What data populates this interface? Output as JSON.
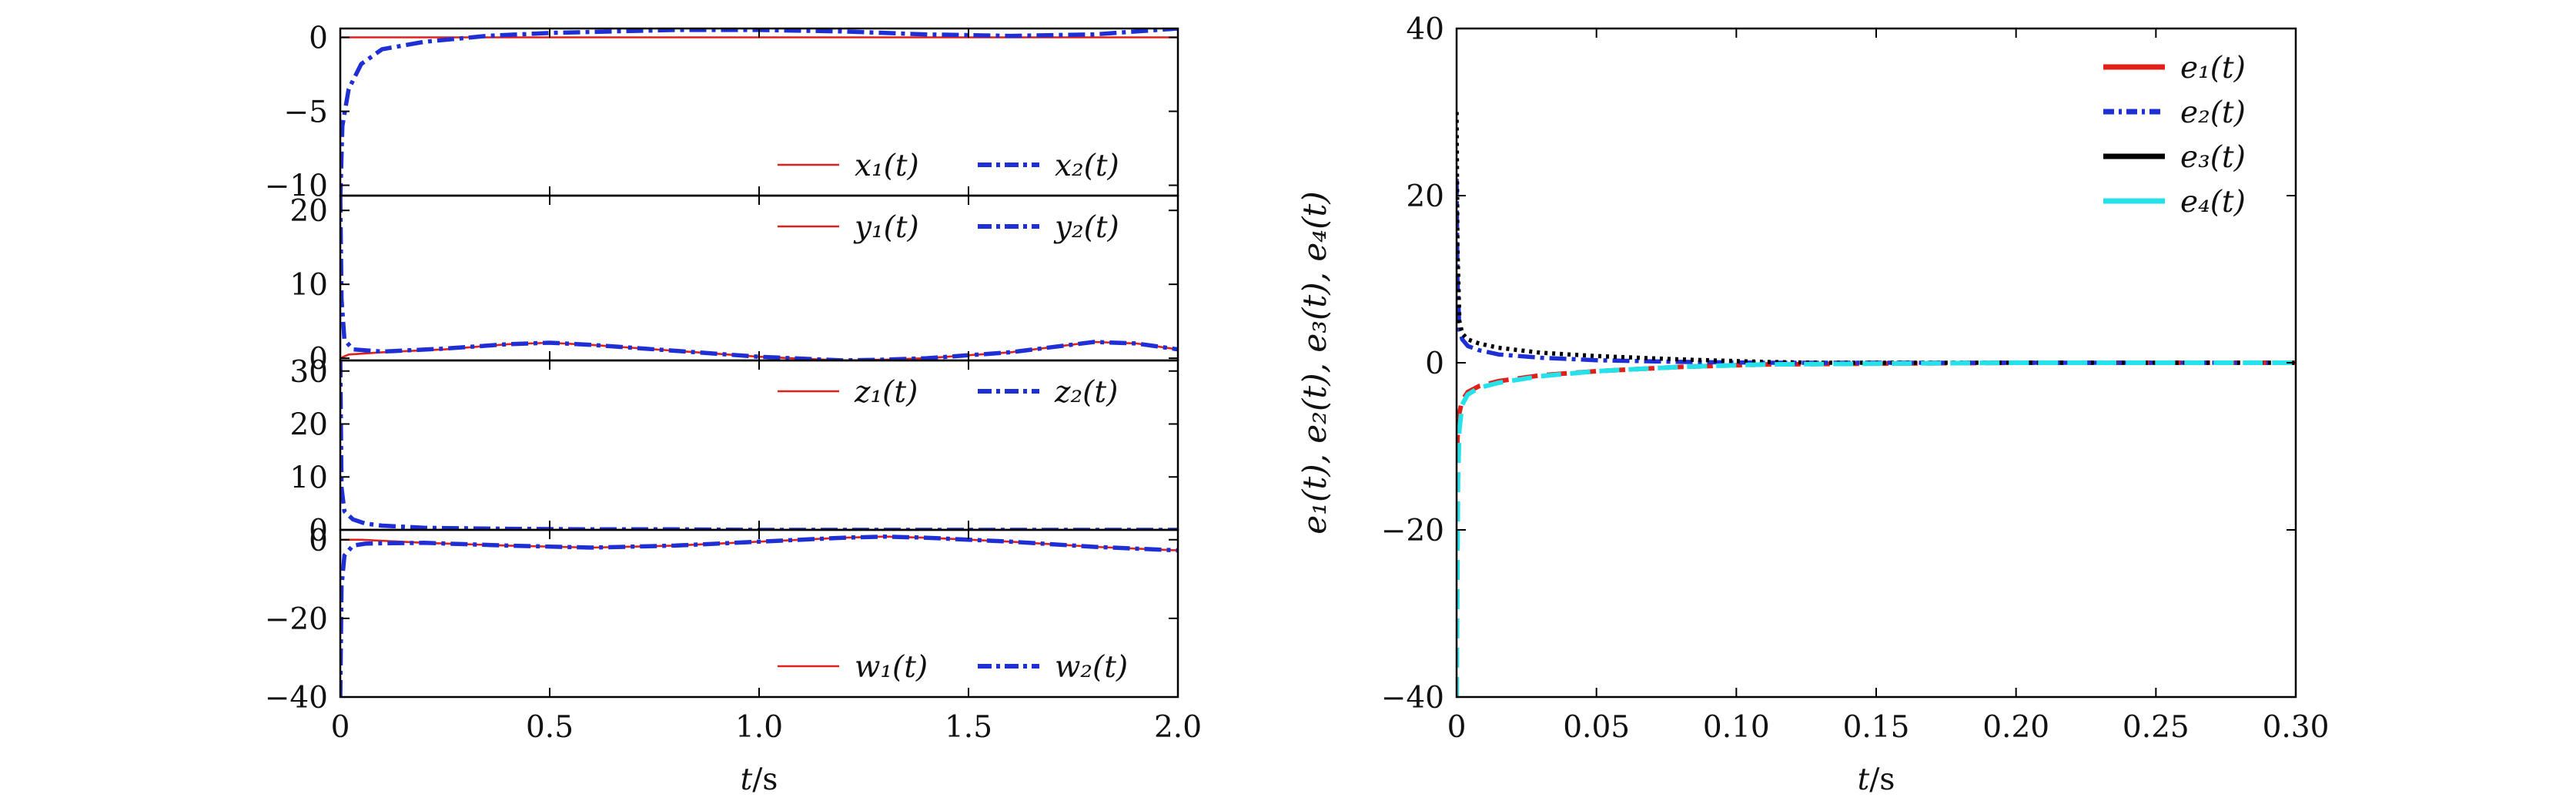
{
  "chart_data": [
    {
      "type": "line",
      "panel": "left-top",
      "xlim": [
        0,
        2.0
      ],
      "ylim": [
        -10,
        0.8
      ],
      "yticks": [
        0,
        -5,
        -10
      ],
      "ytick_labels": [
        "0",
        "−5",
        "−10"
      ],
      "legend_placement": "bottom-right",
      "series": [
        {
          "name": "x₁(t)",
          "color": "#e0201b",
          "style": "solid",
          "x": [
            0,
            0.005,
            0.02,
            0.05,
            0.1,
            0.2,
            0.35,
            0.5,
            0.65,
            0.8,
            1.0,
            1.2,
            1.4,
            1.6,
            1.8,
            2.0
          ],
          "y": [
            0,
            0,
            0,
            0,
            0,
            0,
            0,
            0,
            0,
            0,
            0,
            0,
            0,
            0,
            0,
            0
          ]
        },
        {
          "name": "x₂(t)",
          "color": "#1f2fd6",
          "style": "dashdot",
          "x": [
            0,
            0.005,
            0.02,
            0.05,
            0.1,
            0.2,
            0.35,
            0.5,
            0.65,
            0.8,
            1.0,
            1.2,
            1.4,
            1.6,
            1.8,
            2.0
          ],
          "y": [
            -11,
            -6,
            -3.5,
            -1.8,
            -0.8,
            -0.3,
            0.1,
            0.3,
            0.4,
            0.5,
            0.5,
            0.4,
            0.2,
            0.1,
            0.2,
            0.6
          ]
        }
      ]
    },
    {
      "type": "line",
      "panel": "left-middle-1",
      "xlim": [
        0,
        2.0
      ],
      "ylim": [
        -1,
        22
      ],
      "yticks": [
        20,
        10,
        0
      ],
      "ytick_labels": [
        "20",
        "10",
        "0"
      ],
      "legend_placement": "top-right",
      "series": [
        {
          "name": "y₁(t)",
          "color": "#e0201b",
          "style": "solid",
          "x": [
            0,
            0.02,
            0.1,
            0.25,
            0.4,
            0.5,
            0.6,
            0.8,
            1.0,
            1.2,
            1.3,
            1.4,
            1.6,
            1.8,
            1.9,
            2.0
          ],
          "y": [
            0,
            0.5,
            0.8,
            1.2,
            1.9,
            2.1,
            1.8,
            1.0,
            0.2,
            -0.3,
            -0.2,
            0.0,
            0.8,
            2.2,
            2.0,
            1.2
          ]
        },
        {
          "name": "y₂(t)",
          "color": "#1f2fd6",
          "style": "dashdot",
          "x": [
            0,
            0.003,
            0.01,
            0.03,
            0.1,
            0.25,
            0.4,
            0.5,
            0.6,
            0.8,
            1.0,
            1.2,
            1.3,
            1.4,
            1.6,
            1.8,
            1.9,
            2.0
          ],
          "y": [
            22,
            8,
            2.5,
            1.2,
            0.9,
            1.3,
            1.9,
            2.1,
            1.8,
            1.0,
            0.2,
            -0.3,
            -0.2,
            0.0,
            0.8,
            2.2,
            2.0,
            1.2
          ]
        }
      ]
    },
    {
      "type": "line",
      "panel": "left-middle-2",
      "xlim": [
        0,
        2.0
      ],
      "ylim": [
        -1,
        32
      ],
      "yticks": [
        30,
        20,
        10,
        0
      ],
      "ytick_labels": [
        "30",
        "20",
        "10",
        "0"
      ],
      "legend_placement": "top-right",
      "series": [
        {
          "name": "z₁(t)",
          "color": "#e0201b",
          "style": "solid",
          "x": [
            0,
            0.1,
            0.5,
            1.0,
            1.5,
            2.0
          ],
          "y": [
            0,
            0,
            0,
            0,
            0,
            0
          ]
        },
        {
          "name": "z₂(t)",
          "color": "#1f2fd6",
          "style": "dashdot",
          "x": [
            0,
            0.003,
            0.01,
            0.03,
            0.06,
            0.1,
            0.2,
            0.4,
            0.6,
            0.8,
            1.0,
            1.2,
            1.4,
            1.6,
            1.8,
            2.0
          ],
          "y": [
            32,
            8,
            3.5,
            2.0,
            1.2,
            0.8,
            0.4,
            0.2,
            0.1,
            0.1,
            0.0,
            0.0,
            0.0,
            0.0,
            0.0,
            0.0
          ]
        }
      ]
    },
    {
      "type": "line",
      "panel": "left-bottom",
      "xlim": [
        0,
        2.0
      ],
      "ylim": [
        -40,
        2
      ],
      "yticks": [
        0,
        -20,
        -40
      ],
      "ytick_labels": [
        "0",
        "−20",
        "−40"
      ],
      "xticks": [
        0,
        0.5,
        1.0,
        1.5,
        2.0
      ],
      "xtick_labels": [
        "0",
        "0.5",
        "1.0",
        "1.5",
        "2.0"
      ],
      "xlabel": "t/s",
      "legend_placement": "bottom-right",
      "series": [
        {
          "name": "w₁(t)",
          "color": "#e0201b",
          "style": "solid",
          "x": [
            0,
            0.05,
            0.2,
            0.4,
            0.6,
            0.8,
            1.0,
            1.2,
            1.3,
            1.4,
            1.6,
            1.8,
            2.0
          ],
          "y": [
            0,
            0,
            -0.8,
            -1.5,
            -2.0,
            -1.5,
            -0.5,
            0.5,
            0.8,
            0.5,
            -0.5,
            -1.8,
            -2.7
          ]
        },
        {
          "name": "w₂(t)",
          "color": "#1f2fd6",
          "style": "dashdot",
          "x": [
            0,
            0.003,
            0.01,
            0.03,
            0.06,
            0.1,
            0.2,
            0.4,
            0.6,
            0.8,
            1.0,
            1.2,
            1.3,
            1.4,
            1.6,
            1.8,
            2.0
          ],
          "y": [
            -40,
            -12,
            -4,
            -1.5,
            -1.0,
            -0.9,
            -0.8,
            -1.5,
            -2.0,
            -1.5,
            -0.5,
            0.5,
            0.8,
            0.5,
            -0.5,
            -1.8,
            -2.7
          ]
        }
      ]
    },
    {
      "type": "line",
      "panel": "right",
      "xlim": [
        0,
        0.3
      ],
      "ylim": [
        -40,
        40
      ],
      "yticks": [
        40,
        20,
        0,
        -20,
        -40
      ],
      "ytick_labels": [
        "40",
        "20",
        "0",
        "−20",
        "−40"
      ],
      "xticks": [
        0,
        0.05,
        0.1,
        0.15,
        0.2,
        0.25,
        0.3
      ],
      "xtick_labels": [
        "0",
        "0.05",
        "0.10",
        "0.15",
        "0.20",
        "0.25",
        "0.30"
      ],
      "xlabel": "t/s",
      "ylabel": "e₁(t), e₂(t), e₃(t), e₄(t)",
      "legend_placement": "top-right",
      "series": [
        {
          "name": "e₁(t)",
          "color": "#e0201b",
          "style": "dashed",
          "x": [
            0,
            0.0005,
            0.001,
            0.002,
            0.004,
            0.008,
            0.015,
            0.03,
            0.05,
            0.08,
            0.11,
            0.15,
            0.2,
            0.3
          ],
          "y": [
            -11,
            -8,
            -6,
            -4.5,
            -3.5,
            -2.8,
            -2.2,
            -1.5,
            -1.0,
            -0.5,
            -0.2,
            -0.1,
            0,
            0
          ]
        },
        {
          "name": "e₂(t)",
          "color": "#1f2fd6",
          "style": "dashdot",
          "x": [
            0,
            0.0003,
            0.001,
            0.002,
            0.004,
            0.008,
            0.015,
            0.03,
            0.05,
            0.08,
            0.11,
            0.15,
            0.2,
            0.3
          ],
          "y": [
            22,
            10,
            4,
            2.8,
            2.0,
            1.5,
            1.0,
            0.6,
            0.3,
            0.1,
            0.0,
            0,
            0,
            0
          ]
        },
        {
          "name": "e₃(t)",
          "color": "#000000",
          "style": "dotted",
          "x": [
            0,
            0.0003,
            0.001,
            0.002,
            0.004,
            0.008,
            0.015,
            0.03,
            0.05,
            0.08,
            0.11,
            0.13,
            0.2,
            0.3
          ],
          "y": [
            30,
            14,
            5,
            3.5,
            2.8,
            2.3,
            1.8,
            1.2,
            0.8,
            0.4,
            0.1,
            0.0,
            0,
            0
          ]
        },
        {
          "name": "e₄(t)",
          "color": "#25e2ea",
          "style": "dashed",
          "x": [
            0,
            0.0005,
            0.001,
            0.002,
            0.004,
            0.008,
            0.015,
            0.03,
            0.05,
            0.08,
            0.11,
            0.15,
            0.2,
            0.3
          ],
          "y": [
            -40,
            -14,
            -8,
            -5,
            -3.8,
            -3.0,
            -2.4,
            -1.6,
            -1.0,
            -0.5,
            -0.2,
            -0.1,
            0,
            0
          ]
        }
      ]
    }
  ]
}
